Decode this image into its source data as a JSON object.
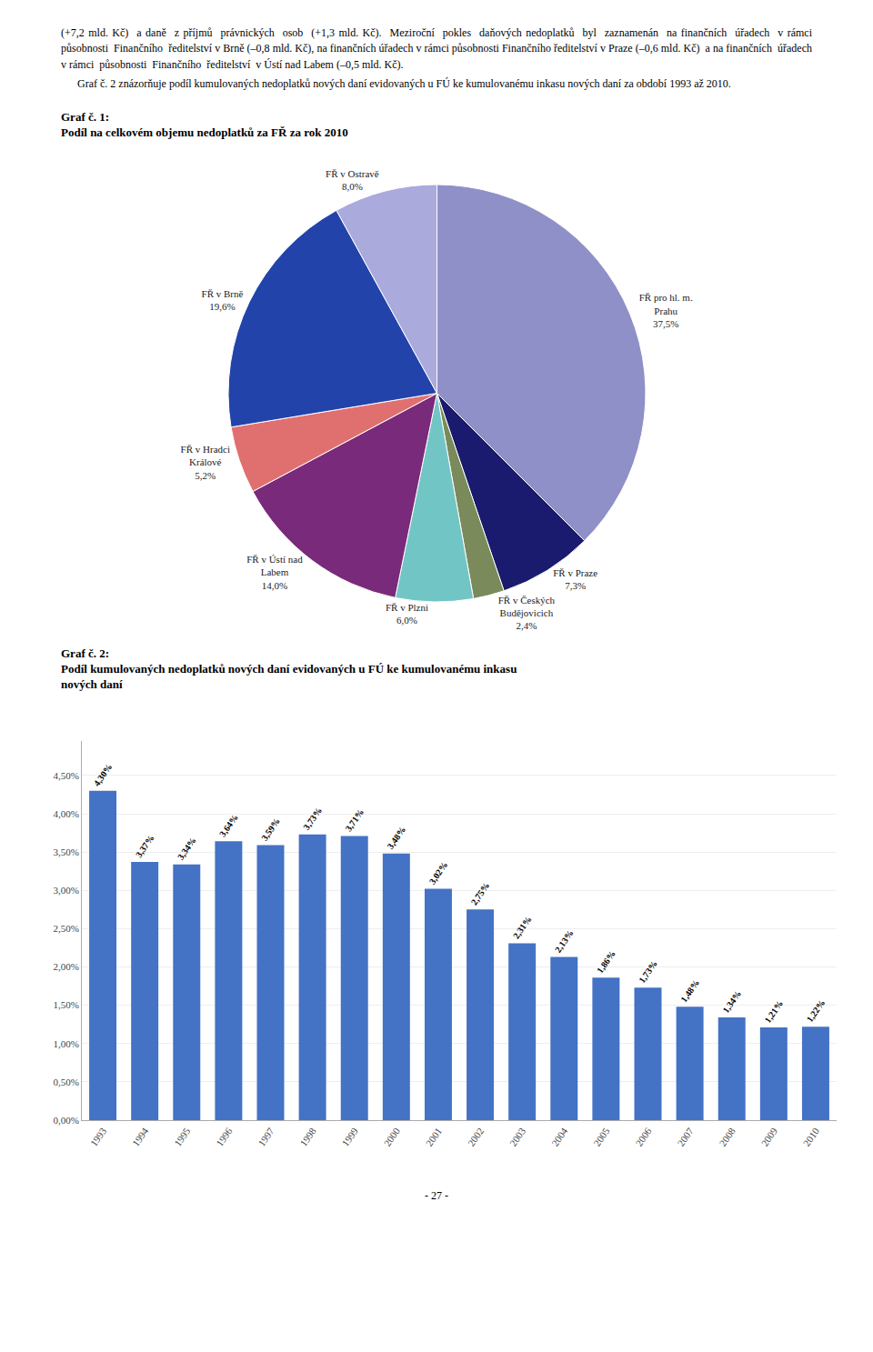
{
  "chart_data": [
    {
      "type": "pie",
      "title": "Graf č. 1:",
      "subtitle": "Podíl na celkovém objemu nedoplatků za FŘ za rok 2010",
      "annotations": [
        "(+7,2 mld. Kč)  a daně  z příjmů  právnických  osob  (+1,3 mld. Kč).  Meziroční  pokles  daňových nedoplatků  byl  zaznamenán  na finančních  úřadech  v rámci  působnosti  Finančního  ředitelství v Brně (–0,8 mld. Kč), na finančních úřadech v rámci působnosti Finančního ředitelství v Praze (–0,6 mld. Kč)  a na finančních  úřadech  v rámci  působnosti  Finančního  ředitelství  v Ústí nad Labem (–0,5 mld. Kč).",
        "      Graf č. 2 znázorňuje podíl kumulovaných nedoplatků nových daní evidovaných u FÚ ke kumulovanému inkasu nových daní za období 1993 až 2010."
      ],
      "categories": [
        "FŘ pro hl. m.\nPrahu",
        "FŘ v Praze",
        "FŘ v Českých\nBudějovicich",
        "FŘ v Plzni",
        "FŘ v Ústí nad\nLabem",
        "FŘ v Hradci\nKrálové",
        "FŘ v Brně",
        "FŘ v Ostravě"
      ],
      "values": [
        37.5,
        7.3,
        2.4,
        6.0,
        14.0,
        5.2,
        19.6,
        8.0
      ],
      "value_labels": [
        "37,5%",
        "7,3%",
        "2,4%",
        "6,0%",
        "14,0%",
        "5,2%",
        "19,6%",
        "8,0%"
      ],
      "colors": [
        "#9090c8",
        "#1a1a6e",
        "#7a8a5a",
        "#72c5c5",
        "#7a2a7a",
        "#e07070",
        "#2244aa",
        "#aaaadd"
      ],
      "data_labels": true
    },
    {
      "type": "bar",
      "title": "Graf č. 2:",
      "subtitle": "Podíl kumulovaných nedoplatků nových daní evidovaných u FÚ ke kumulovanému inkasu\nnových daní",
      "annotations": [
        "- 27 -"
      ],
      "categories": [
        "1993",
        "1994",
        "1995",
        "1996",
        "1997",
        "1998",
        "1999",
        "2000",
        "2001",
        "2002",
        "2003",
        "2004",
        "2005",
        "2006",
        "2007",
        "2008",
        "2009",
        "2010"
      ],
      "values": [
        4.3,
        3.37,
        3.34,
        3.64,
        3.59,
        3.73,
        3.71,
        3.48,
        3.02,
        2.75,
        2.31,
        2.13,
        1.86,
        1.73,
        1.48,
        1.34,
        1.21,
        1.22
      ],
      "value_labels": [
        "4,30%",
        "3,37%",
        "3,34%",
        "3,64%",
        "3,59%",
        "3,73%",
        "3,71%",
        "3,48%",
        "3,02%",
        "2,75%",
        "2,31%",
        "2,13%",
        "1,86%",
        "1,73%",
        "1,48%",
        "1,34%",
        "1,21%",
        "1,22%"
      ],
      "color": "#4472c4",
      "ylim": [
        0,
        4.95
      ],
      "yticks": [
        {
          "value": 0.0,
          "label": "0,00%"
        },
        {
          "value": 0.5,
          "label": "0,50%"
        },
        {
          "value": 1.0,
          "label": "1,00%"
        },
        {
          "value": 1.5,
          "label": "1,50%"
        },
        {
          "value": 2.0,
          "label": "2,00%"
        },
        {
          "value": 2.5,
          "label": "2,50%"
        },
        {
          "value": 3.0,
          "label": "3,00%"
        },
        {
          "value": 3.5,
          "label": "3,50%"
        },
        {
          "value": 4.0,
          "label": "4,00%"
        },
        {
          "value": 4.5,
          "label": "4,50%"
        }
      ],
      "grid": true,
      "data_labels": true
    }
  ]
}
